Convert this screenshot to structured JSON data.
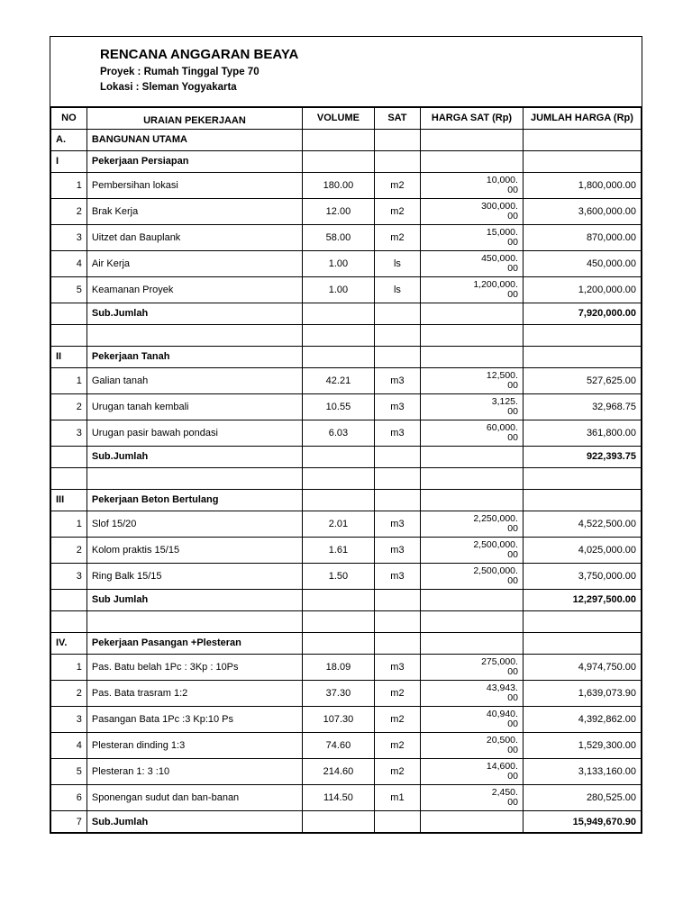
{
  "header": {
    "title": "RENCANA  ANGGARAN BEAYA",
    "proyek_label": "Proyek  : Rumah Tinggal Type 70",
    "lokasi_label": "Lokasi   : Sleman Yogyakarta"
  },
  "columns": {
    "no": "NO",
    "uraian": "URAIAN PEKERJAAN",
    "volume": "VOLUME",
    "sat": "SAT",
    "harga_sat": "HARGA SAT (Rp)",
    "jumlah": "JUMLAH HARGA (Rp)"
  },
  "section_a": {
    "no": "A.",
    "label": "BANGUNAN UTAMA"
  },
  "groups": [
    {
      "no": "I",
      "label": "Pekerjaan Persiapan",
      "rows": [
        {
          "n": "1",
          "d": "Pembersihan lokasi",
          "v": "180.00",
          "s": "m2",
          "h1": "10,000.",
          "h2": "00",
          "j": "1,800,000.00"
        },
        {
          "n": "2",
          "d": "Brak Kerja",
          "v": "12.00",
          "s": "m2",
          "h1": "300,000.",
          "h2": "00",
          "j": "3,600,000.00"
        },
        {
          "n": "3",
          "d": "Uitzet dan Bauplank",
          "v": "58.00",
          "s": "m2",
          "h1": "15,000.",
          "h2": "00",
          "j": "870,000.00"
        },
        {
          "n": "4",
          "d": "Air Kerja",
          "v": "1.00",
          "s": "ls",
          "h1": "450,000.",
          "h2": "00",
          "j": "450,000.00"
        },
        {
          "n": "5",
          "d": "Keamanan Proyek",
          "v": "1.00",
          "s": "ls",
          "h1": "1,200,000.",
          "h2": "00",
          "j": "1,200,000.00"
        }
      ],
      "sub_label": "Sub.Jumlah",
      "sub_total": "7,920,000.00"
    },
    {
      "no": "II",
      "label": "Pekerjaan Tanah",
      "rows": [
        {
          "n": "1",
          "d": "Galian tanah",
          "v": "42.21",
          "s": "m3",
          "h1": "12,500.",
          "h2": "00",
          "j": "527,625.00"
        },
        {
          "n": "2",
          "d": "Urugan tanah kembali",
          "v": "10.55",
          "s": "m3",
          "h1": "3,125.",
          "h2": "00",
          "j": "32,968.75"
        },
        {
          "n": "3",
          "d": "Urugan pasir bawah pondasi",
          "v": "6.03",
          "s": "m3",
          "h1": "60,000.",
          "h2": "00",
          "j": "361,800.00"
        }
      ],
      "sub_label": "Sub.Jumlah",
      "sub_total": "922,393.75"
    },
    {
      "no": "III",
      "label": "Pekerjaan Beton Bertulang",
      "rows": [
        {
          "n": "1",
          "d": "Slof 15/20",
          "v": "2.01",
          "s": "m3",
          "h1": "2,250,000.",
          "h2": "00",
          "j": "4,522,500.00"
        },
        {
          "n": "2",
          "d": "Kolom praktis 15/15",
          "v": "1.61",
          "s": "m3",
          "h1": "2,500,000.",
          "h2": "00",
          "j": "4,025,000.00"
        },
        {
          "n": "3",
          "d": "Ring Balk 15/15",
          "v": "1.50",
          "s": "m3",
          "h1": "2,500,000.",
          "h2": "00",
          "j": "3,750,000.00"
        }
      ],
      "sub_label": "Sub Jumlah",
      "sub_total": "12,297,500.00"
    },
    {
      "no": "IV.",
      "label": "Pekerjaan Pasangan +Plesteran",
      "rows": [
        {
          "n": "1",
          "d": "Pas. Batu belah 1Pc : 3Kp : 10Ps",
          "v": "18.09",
          "s": "m3",
          "h1": "275,000.",
          "h2": "00",
          "j": "4,974,750.00"
        },
        {
          "n": "2",
          "d": "Pas. Bata trasram 1:2",
          "v": "37.30",
          "s": "m2",
          "h1": "43,943.",
          "h2": "00",
          "j": "1,639,073.90"
        },
        {
          "n": "3",
          "d": "Pasangan Bata 1Pc :3 Kp:10 Ps",
          "v": "107.30",
          "s": "m2",
          "h1": "40,940.",
          "h2": "00",
          "j": "4,392,862.00"
        },
        {
          "n": "4",
          "d": "Plesteran dinding 1:3",
          "v": "74.60",
          "s": "m2",
          "h1": "20,500.",
          "h2": "00",
          "j": "1,529,300.00"
        },
        {
          "n": "5",
          "d": "Plesteran 1: 3 :10",
          "v": "214.60",
          "s": "m2",
          "h1": "14,600.",
          "h2": "00",
          "j": "3,133,160.00"
        },
        {
          "n": "6",
          "d": "Sponengan sudut dan ban-banan",
          "v": "114.50",
          "s": "m1",
          "h1": "2,450.",
          "h2": "00",
          "j": "280,525.00"
        }
      ],
      "sub_no": "7",
      "sub_label": "Sub.Jumlah",
      "sub_total": "15,949,670.90"
    }
  ]
}
